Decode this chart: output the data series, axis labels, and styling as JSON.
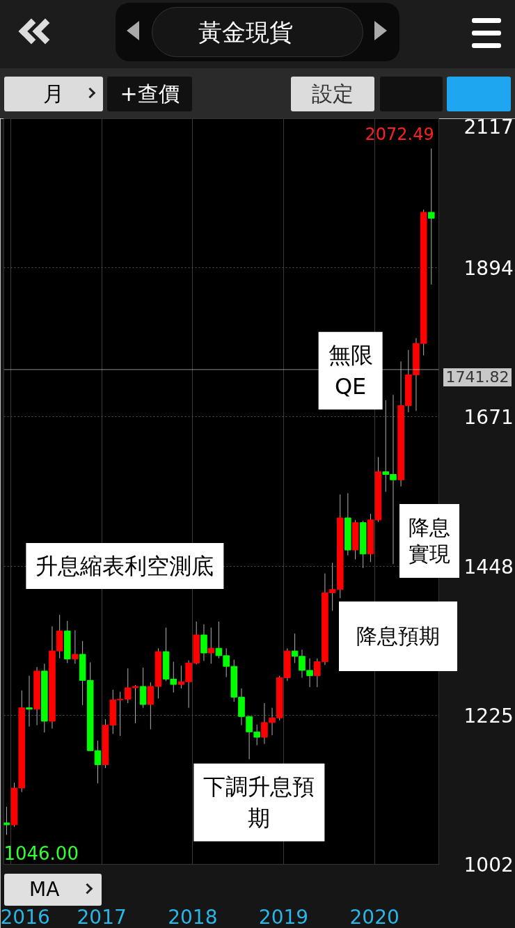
{
  "chart_data": {
    "type": "candlestick",
    "title": "黃金現貨",
    "x": [
      "2015-12-16",
      "2016-01-16",
      "2016-02-15",
      "2016-03-16",
      "2016-04-16",
      "2016-05-16",
      "2016-06-16",
      "2016-07-16",
      "2016-08-16",
      "2016-09-16",
      "2016-10-16",
      "2016-11-16",
      "2016-12-16",
      "2017-01-16",
      "2017-02-15",
      "2017-03-16",
      "2017-04-16",
      "2017-05-16",
      "2017-06-16",
      "2017-07-16",
      "2017-08-16",
      "2017-09-16",
      "2017-10-16",
      "2017-11-16",
      "2017-12-16",
      "2018-01-16",
      "2018-02-15",
      "2018-03-16",
      "2018-04-16",
      "2018-05-16",
      "2018-06-16",
      "2018-07-16",
      "2018-08-16",
      "2018-09-16",
      "2018-10-16",
      "2018-11-16",
      "2018-12-16",
      "2019-01-16",
      "2019-02-15",
      "2019-03-16",
      "2019-04-16",
      "2019-05-16",
      "2019-06-16",
      "2019-07-16",
      "2019-08-16",
      "2019-09-16",
      "2019-10-16",
      "2019-11-16",
      "2019-12-16",
      "2020-01-16",
      "2020-02-15",
      "2020-03-16",
      "2020-04-16",
      "2020-05-16",
      "2020-06-16",
      "2020-07-16",
      "2020-08-16"
    ],
    "ohlc": [
      [
        1064,
        1088,
        1046,
        1061
      ],
      [
        1061,
        1124,
        1058,
        1116
      ],
      [
        1116,
        1262,
        1110,
        1236
      ],
      [
        1236,
        1284,
        1208,
        1234
      ],
      [
        1234,
        1297,
        1210,
        1291
      ],
      [
        1291,
        1302,
        1199,
        1216
      ],
      [
        1216,
        1358,
        1205,
        1321
      ],
      [
        1321,
        1375,
        1310,
        1351
      ],
      [
        1351,
        1366,
        1303,
        1309
      ],
      [
        1309,
        1352,
        1302,
        1316
      ],
      [
        1316,
        1336,
        1240,
        1277
      ],
      [
        1277,
        1304,
        1171,
        1172
      ],
      [
        1172,
        1187,
        1123,
        1151
      ],
      [
        1151,
        1219,
        1146,
        1210
      ],
      [
        1210,
        1263,
        1197,
        1248
      ],
      [
        1248,
        1260,
        1194,
        1249
      ],
      [
        1249,
        1295,
        1243,
        1266
      ],
      [
        1266,
        1270,
        1213,
        1268
      ],
      [
        1268,
        1296,
        1236,
        1241
      ],
      [
        1241,
        1274,
        1204,
        1268
      ],
      [
        1268,
        1325,
        1250,
        1320
      ],
      [
        1320,
        1356,
        1276,
        1279
      ],
      [
        1279,
        1305,
        1259,
        1271
      ],
      [
        1271,
        1299,
        1265,
        1275
      ],
      [
        1275,
        1307,
        1236,
        1303
      ],
      [
        1303,
        1365,
        1301,
        1345
      ],
      [
        1345,
        1361,
        1306,
        1318
      ],
      [
        1318,
        1356,
        1302,
        1325
      ],
      [
        1325,
        1365,
        1310,
        1314
      ],
      [
        1314,
        1325,
        1282,
        1298
      ],
      [
        1298,
        1308,
        1245,
        1252
      ],
      [
        1252,
        1265,
        1210,
        1223
      ],
      [
        1223,
        1224,
        1159,
        1200
      ],
      [
        1200,
        1211,
        1180,
        1192
      ],
      [
        1192,
        1243,
        1182,
        1214
      ],
      [
        1214,
        1236,
        1195,
        1221
      ],
      [
        1221,
        1284,
        1217,
        1281
      ],
      [
        1281,
        1325,
        1276,
        1321
      ],
      [
        1321,
        1347,
        1303,
        1313
      ],
      [
        1313,
        1323,
        1281,
        1292
      ],
      [
        1292,
        1310,
        1267,
        1284
      ],
      [
        1284,
        1310,
        1267,
        1305
      ],
      [
        1305,
        1437,
        1300,
        1408
      ],
      [
        1408,
        1453,
        1381,
        1413
      ],
      [
        1413,
        1555,
        1400,
        1520
      ],
      [
        1520,
        1557,
        1464,
        1472
      ],
      [
        1472,
        1517,
        1458,
        1513
      ],
      [
        1513,
        1516,
        1445,
        1466
      ],
      [
        1466,
        1526,
        1454,
        1517
      ],
      [
        1517,
        1611,
        1514,
        1589
      ],
      [
        1589,
        1696,
        1559,
        1585
      ],
      [
        1585,
        1704,
        1451,
        1577
      ],
      [
        1577,
        1754,
        1567,
        1688
      ],
      [
        1688,
        1771,
        1678,
        1734
      ],
      [
        1734,
        1789,
        1680,
        1781
      ],
      [
        1781,
        1981,
        1763,
        1977
      ],
      [
        1977,
        2072.49,
        1869,
        1968
      ]
    ],
    "colors": [
      "#00ff00",
      "#ff0000",
      "#ff0000",
      "#00ff00",
      "#ff0000",
      "#00ff00",
      "#ff0000",
      "#ff0000",
      "#00ff00",
      "#ff0000",
      "#00ff00",
      "#00ff00",
      "#00ff00",
      "#ff0000",
      "#ff0000",
      "#ff0000",
      "#ff0000",
      "#ff0000",
      "#00ff00",
      "#ff0000",
      "#ff0000",
      "#00ff00",
      "#00ff00",
      "#ff0000",
      "#ff0000",
      "#ff0000",
      "#00ff00",
      "#ff0000",
      "#00ff00",
      "#00ff00",
      "#00ff00",
      "#00ff00",
      "#00ff00",
      "#00ff00",
      "#ff0000",
      "#ff0000",
      "#ff0000",
      "#ff0000",
      "#00ff00",
      "#00ff00",
      "#00ff00",
      "#ff0000",
      "#ff0000",
      "#ff0000",
      "#ff0000",
      "#00ff00",
      "#ff0000",
      "#00ff00",
      "#ff0000",
      "#ff0000",
      "#00ff00",
      "#00ff00",
      "#ff0000",
      "#ff0000",
      "#ff0000",
      "#ff0000",
      "#00ff00"
    ],
    "xlim": [
      "2015-12-05",
      "2020-09-15"
    ],
    "xticks": [
      {
        "value": "2016-01",
        "label": "2016"
      },
      {
        "value": "2017-01",
        "label": "2017"
      },
      {
        "value": "2018-01",
        "label": "2018"
      },
      {
        "value": "2019-01",
        "label": "2019"
      },
      {
        "value": "2020-01",
        "label": "2020"
      }
    ],
    "ylim": [
      1002,
      2117
    ],
    "yticks": [
      1002,
      1225,
      1448,
      1671,
      1894,
      2117
    ],
    "grid": true,
    "ref_lines": [
      {
        "axis": "y",
        "value": 1741.82,
        "label": "1741.82",
        "color": "#c8c8c8"
      }
    ],
    "annotations": [
      "月",
      "+查價",
      "設定",
      "MA",
      "升息縮表利空測底",
      "下調升息預期",
      "降息預期",
      "無限QE",
      "降息實現",
      "2072.49",
      "1046.00"
    ]
  }
}
